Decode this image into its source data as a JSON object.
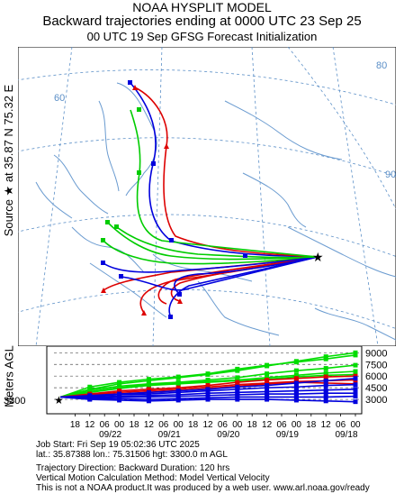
{
  "header": {
    "line1": "NOAA HYSPLIT MODEL",
    "line2": "Backward trajectories ending at 0000 UTC 23 Sep 25",
    "line3": "00 UTC 19 Sep    GFSG  Forecast Initialization"
  },
  "side": {
    "source_label": "Source ★ at   35.87 N   75.32 E",
    "meters_label": "Meters AGL"
  },
  "map": {
    "lon_label_1": "80",
    "lon_label_2": "60",
    "lon_label_3": "90"
  },
  "chart_data": {
    "type": "line",
    "title": "Backward trajectories ending at 0000 UTC 23 Sep 25",
    "ylabel": "Meters AGL",
    "start_height_label": "3300",
    "y_ticks": [
      "9000",
      "7500",
      "6000",
      "4500",
      "3000"
    ],
    "y_tick_values": [
      9000,
      7500,
      6000,
      4500,
      3000
    ],
    "ylim": [
      1500,
      9500
    ],
    "x_hour_ticks": [
      "18",
      "12",
      "06",
      "00",
      "18",
      "12",
      "06",
      "00",
      "18",
      "12",
      "06",
      "00",
      "18",
      "12",
      "06",
      "00",
      "18",
      "12",
      "06",
      "00"
    ],
    "x_date_ticks": [
      "09/22",
      "09/21",
      "09/20",
      "09/19",
      "09/18"
    ],
    "x_axis_note": "time runs backward from left (09/23 00 UTC) to right (09/18 00 UTC); x in hours back",
    "series": [
      {
        "color": "#00dd00",
        "x": [
          0,
          12,
          24,
          36,
          48,
          60,
          72,
          84,
          96,
          108,
          120
        ],
        "y": [
          3300,
          4300,
          5000,
          5400,
          5800,
          6200,
          6700,
          7300,
          7900,
          8500,
          9000
        ]
      },
      {
        "color": "#00dd00",
        "x": [
          0,
          12,
          24,
          36,
          48,
          60,
          72,
          84,
          96,
          108,
          120
        ],
        "y": [
          3300,
          4600,
          5200,
          5600,
          5900,
          6300,
          6900,
          7400,
          7800,
          8200,
          8700
        ]
      },
      {
        "color": "#00dd00",
        "x": [
          0,
          12,
          24,
          36,
          48,
          60,
          72,
          84,
          96,
          108,
          120
        ],
        "y": [
          3300,
          4200,
          4700,
          5000,
          5200,
          5500,
          5800,
          6300,
          6700,
          7000,
          7400
        ]
      },
      {
        "color": "#00dd00",
        "x": [
          0,
          12,
          24,
          36,
          48,
          60,
          72,
          84,
          96,
          108,
          120
        ],
        "y": [
          3300,
          4000,
          4500,
          4900,
          5100,
          5300,
          5500,
          5800,
          6100,
          6400,
          6600
        ]
      },
      {
        "color": "#00dd00",
        "x": [
          0,
          12,
          24,
          36,
          48,
          60,
          72,
          84,
          96,
          108,
          120
        ],
        "y": [
          3300,
          3900,
          4400,
          4800,
          5000,
          5200,
          5400,
          5600,
          5900,
          6100,
          6200
        ]
      },
      {
        "color": "#dd0000",
        "x": [
          0,
          12,
          24,
          36,
          48,
          60,
          72,
          84,
          96,
          108,
          120
        ],
        "y": [
          3300,
          3700,
          4100,
          4300,
          4500,
          4800,
          5200,
          5500,
          5700,
          5900,
          6000
        ]
      },
      {
        "color": "#dd0000",
        "x": [
          0,
          12,
          24,
          36,
          48,
          60,
          72,
          84,
          96,
          108,
          120
        ],
        "y": [
          3300,
          3600,
          3900,
          4100,
          4300,
          4600,
          4900,
          5100,
          5300,
          5400,
          5500
        ]
      },
      {
        "color": "#dd0000",
        "x": [
          0,
          12,
          24,
          36,
          48,
          60,
          72,
          84,
          96,
          108,
          120
        ],
        "y": [
          3300,
          3500,
          3700,
          3900,
          4100,
          4400,
          4700,
          5000,
          5200,
          5100,
          5000
        ]
      },
      {
        "color": "#0000dd",
        "x": [
          0,
          12,
          24,
          36,
          48,
          60,
          72,
          84,
          96,
          108,
          120
        ],
        "y": [
          3300,
          3500,
          3700,
          3900,
          4100,
          4300,
          4600,
          4800,
          5100,
          5400,
          5700
        ]
      },
      {
        "color": "#0000dd",
        "x": [
          0,
          12,
          24,
          36,
          48,
          60,
          72,
          84,
          96,
          108,
          120
        ],
        "y": [
          3300,
          3400,
          3600,
          3700,
          3900,
          4100,
          4300,
          4500,
          4600,
          4800,
          4900
        ]
      },
      {
        "color": "#0000dd",
        "x": [
          0,
          12,
          24,
          36,
          48,
          60,
          72,
          84,
          96,
          108,
          120
        ],
        "y": [
          3300,
          3300,
          3400,
          3500,
          3600,
          3800,
          3900,
          4000,
          4100,
          4200,
          4300
        ]
      },
      {
        "color": "#0000dd",
        "x": [
          0,
          12,
          24,
          36,
          48,
          60,
          72,
          84,
          96,
          108,
          120
        ],
        "y": [
          3300,
          3200,
          3300,
          3300,
          3400,
          3500,
          3600,
          3700,
          3700,
          3800,
          3800
        ]
      },
      {
        "color": "#0000dd",
        "x": [
          0,
          12,
          24,
          36,
          48,
          60,
          72,
          84,
          96,
          108,
          120
        ],
        "y": [
          3300,
          3100,
          3100,
          3000,
          3100,
          3200,
          3300,
          3300,
          3300,
          3300,
          3400
        ]
      },
      {
        "color": "#0000dd",
        "x": [
          0,
          12,
          24,
          36,
          48,
          60,
          72,
          84,
          96,
          108,
          120
        ],
        "y": [
          3300,
          3000,
          2900,
          2800,
          2900,
          3000,
          3000,
          3000,
          2900,
          2800,
          2700
        ]
      }
    ]
  },
  "footer": {
    "line1": "Job Start: Fri Sep 19 05:02:36 UTC 2025",
    "line2": "lat.: 35.87388   lon.: 75.31506   hgt: 3300.0 m AGL",
    "line3": "Trajectory Direction: Backward        Duration: 120 hrs",
    "line4": "Vertical Motion Calculation Method: Model Vertical Velocity",
    "line5": "This is not a NOAA product.It was produced by a web user. www.arl.noaa.gov/ready"
  }
}
